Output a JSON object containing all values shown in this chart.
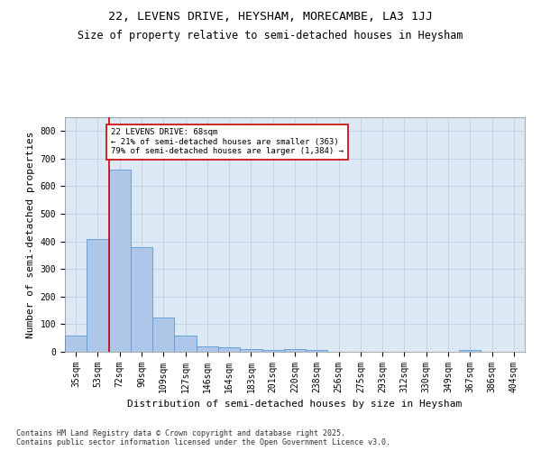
{
  "title1": "22, LEVENS DRIVE, HEYSHAM, MORECAMBE, LA3 1JJ",
  "title2": "Size of property relative to semi-detached houses in Heysham",
  "xlabel": "Distribution of semi-detached houses by size in Heysham",
  "ylabel": "Number of semi-detached properties",
  "footnote": "Contains HM Land Registry data © Crown copyright and database right 2025.\nContains public sector information licensed under the Open Government Licence v3.0.",
  "bar_labels": [
    "35sqm",
    "53sqm",
    "72sqm",
    "90sqm",
    "109sqm",
    "127sqm",
    "146sqm",
    "164sqm",
    "183sqm",
    "201sqm",
    "220sqm",
    "238sqm",
    "256sqm",
    "275sqm",
    "293sqm",
    "312sqm",
    "330sqm",
    "349sqm",
    "367sqm",
    "386sqm",
    "404sqm"
  ],
  "bar_values": [
    60,
    410,
    660,
    380,
    125,
    60,
    20,
    15,
    10,
    8,
    10,
    8,
    0,
    0,
    0,
    0,
    0,
    0,
    5,
    0,
    0
  ],
  "bar_color": "#aec6e8",
  "bar_edgecolor": "#5b9bd5",
  "property_line_x": 1.5,
  "annotation_line1": "22 LEVENS DRIVE: 68sqm",
  "annotation_line2": "← 21% of semi-detached houses are smaller (363)",
  "annotation_line3": "79% of semi-detached houses are larger (1,384) →",
  "annotation_box_color": "#ffffff",
  "annotation_box_edgecolor": "#cc0000",
  "redline_color": "#cc0000",
  "ylim": [
    0,
    850
  ],
  "yticks": [
    0,
    100,
    200,
    300,
    400,
    500,
    600,
    700,
    800
  ],
  "grid_color": "#c0cfe0",
  "background_color": "#dce9f5",
  "title1_fontsize": 9.5,
  "title2_fontsize": 8.5,
  "axis_label_fontsize": 8,
  "tick_fontsize": 7,
  "annotation_fontsize": 6.5,
  "footnote_fontsize": 6
}
